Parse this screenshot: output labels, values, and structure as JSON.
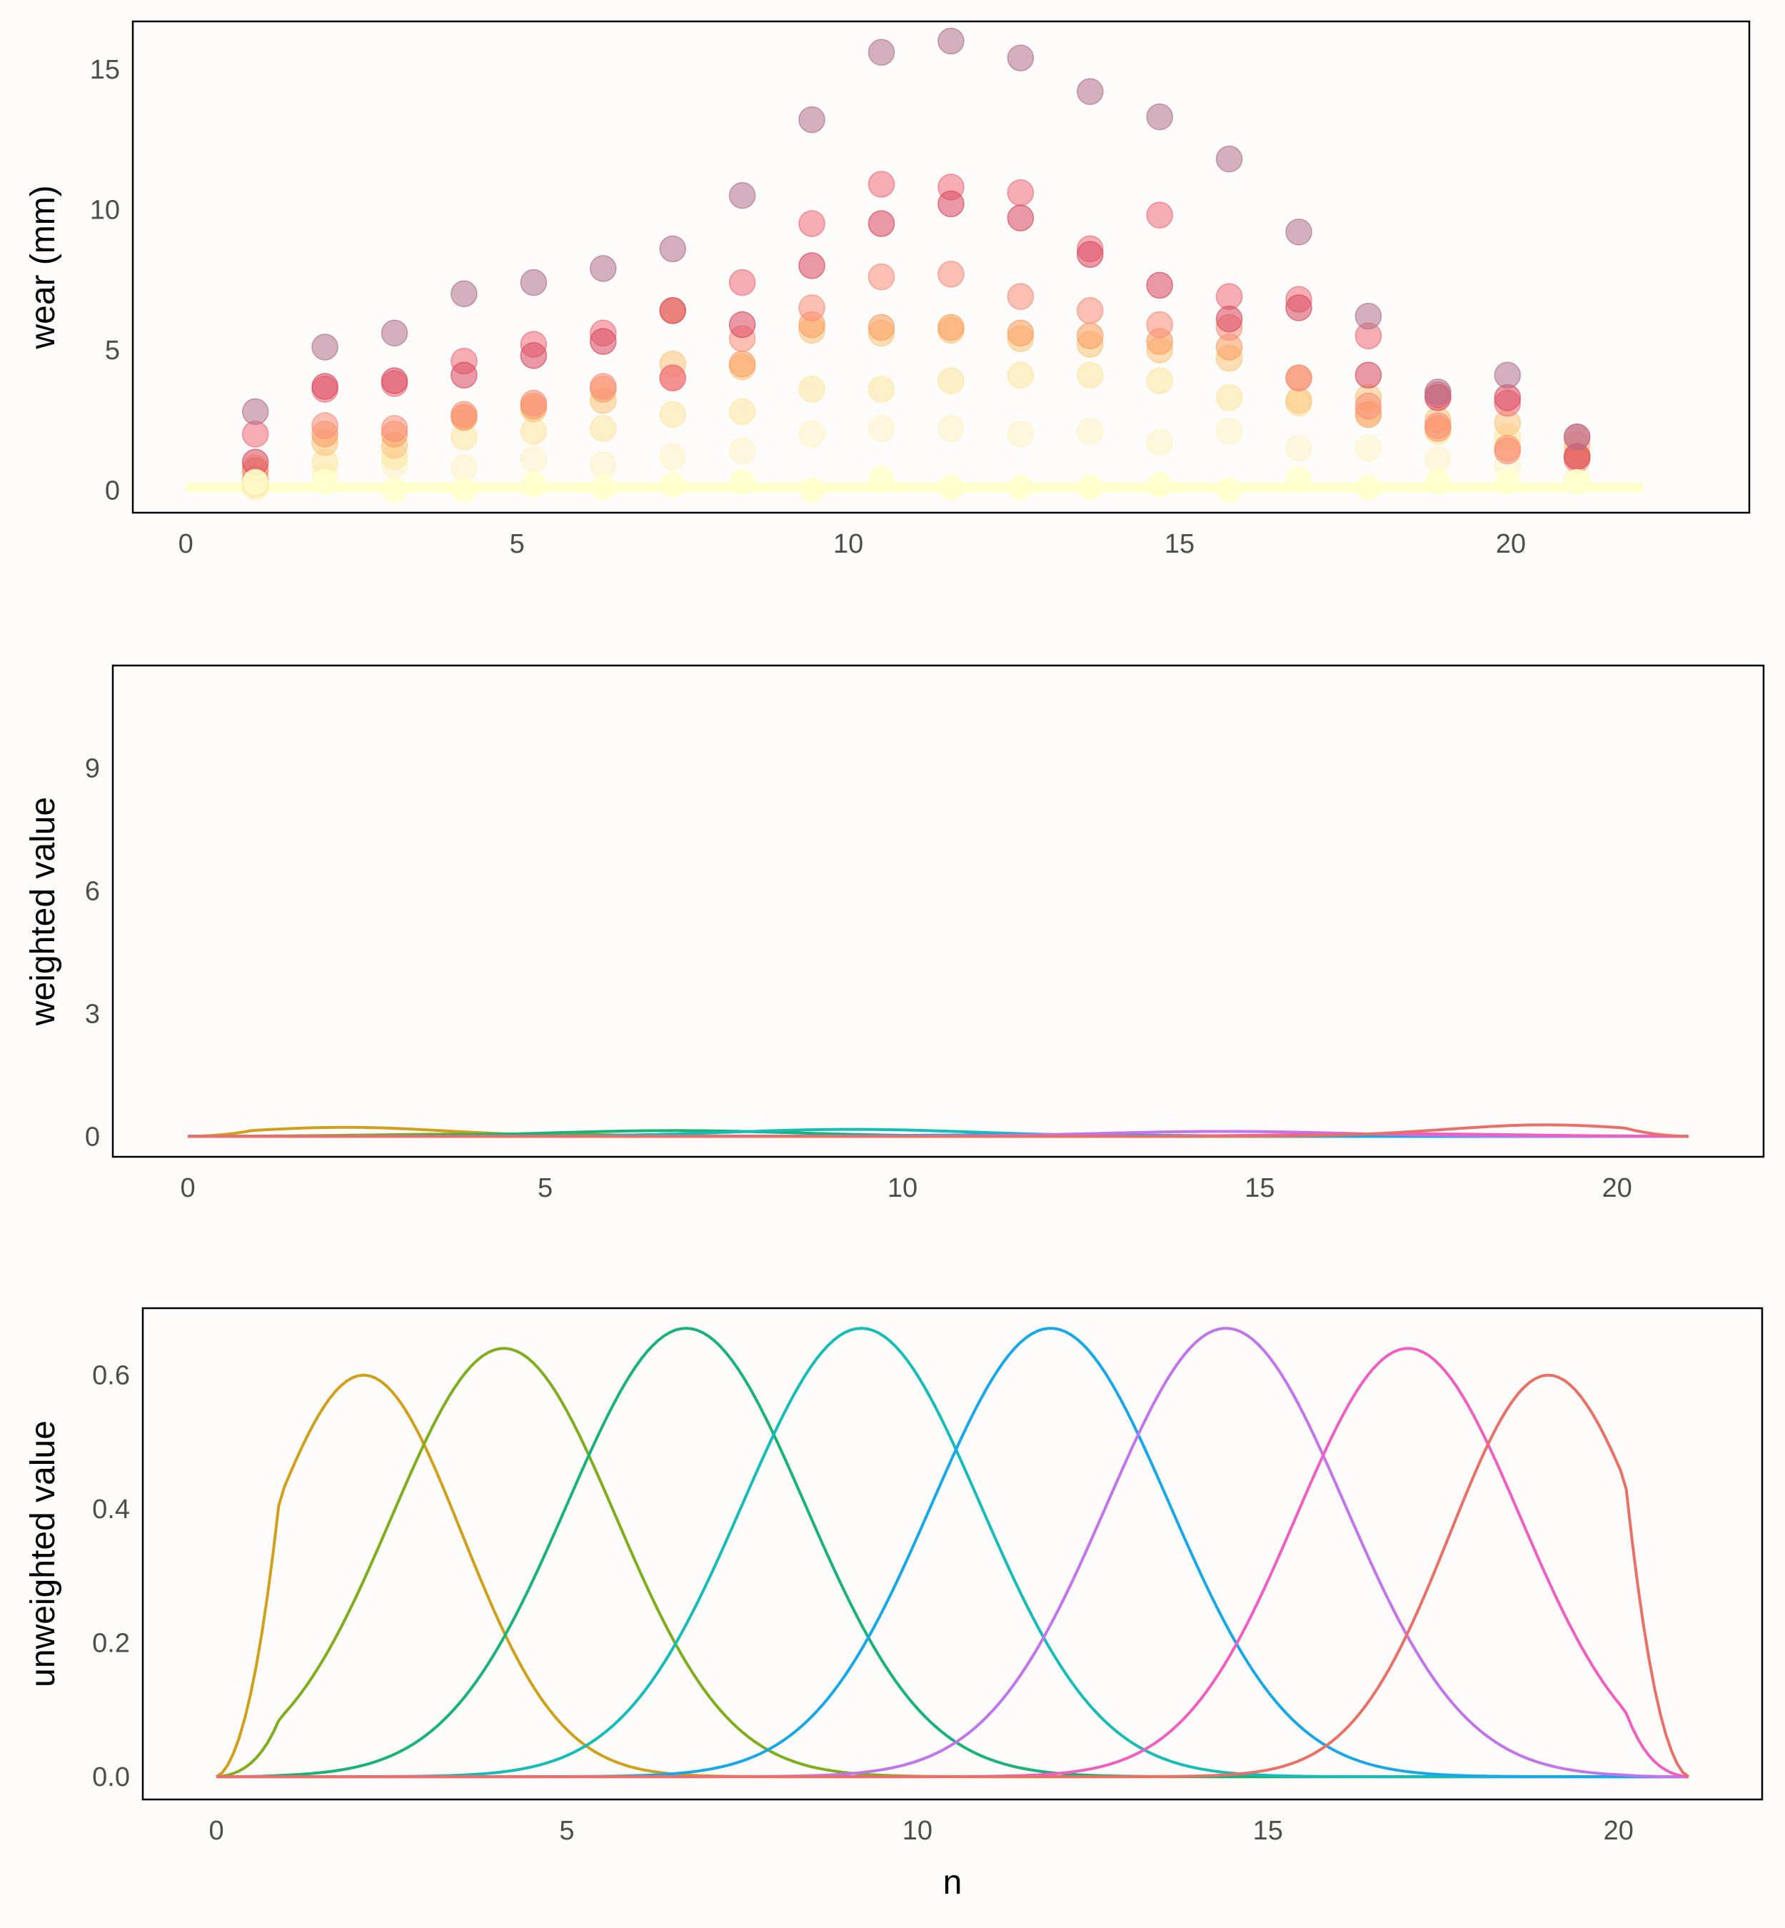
{
  "chart_data": [
    {
      "type": "scatter",
      "ylabel": "wear (mm)",
      "xlabel": "",
      "xlim": [
        -0.8,
        23.6
      ],
      "ylim": [
        -0.8,
        16.7
      ],
      "xticks": [
        0,
        5,
        10,
        15,
        20
      ],
      "yticks": [
        0,
        5,
        10,
        15
      ],
      "grid": false,
      "legend": "none",
      "x": [
        1.05,
        2.1,
        3.15,
        4.2,
        5.25,
        6.3,
        7.35,
        8.4,
        9.45,
        10.5,
        11.55,
        12.6,
        13.65,
        14.7,
        15.75,
        16.8,
        17.85,
        18.9,
        19.95,
        21.0
      ],
      "series": [
        {
          "color": "#b3708a",
          "values": [
            2.8,
            5.1,
            5.6,
            7.0,
            7.4,
            7.9,
            8.6,
            10.5,
            13.2,
            15.6,
            16.0,
            15.4,
            14.2,
            13.3,
            11.8,
            9.2,
            6.2,
            3.5,
            4.1,
            1.9
          ]
        },
        {
          "color": "#d9475e",
          "values": [
            1.0,
            3.7,
            3.9,
            4.1,
            4.8,
            5.3,
            6.4,
            5.9,
            8.0,
            9.5,
            10.2,
            9.7,
            8.4,
            7.3,
            6.1,
            6.5,
            4.1,
            3.3,
            3.3,
            1.2
          ]
        },
        {
          "color": "#f06c78",
          "values": [
            2.0,
            3.6,
            3.8,
            4.6,
            5.2,
            5.6,
            4.0,
            7.4,
            9.5,
            10.9,
            10.8,
            10.6,
            8.6,
            9.8,
            6.9,
            6.8,
            5.5,
            3.4,
            3.1,
            1.9
          ]
        },
        {
          "color": "#f98c7a",
          "values": [
            0.7,
            2.3,
            2.2,
            2.7,
            3.1,
            3.7,
            4.0,
            5.4,
            6.5,
            7.6,
            7.7,
            6.9,
            6.4,
            5.9,
            5.8,
            4.0,
            3.0,
            2.3,
            1.4,
            1.1
          ]
        },
        {
          "color": "#fb9b5b",
          "values": [
            0.4,
            2.0,
            2.0,
            2.6,
            3.0,
            3.6,
            6.4,
            4.5,
            5.9,
            5.8,
            5.8,
            5.6,
            5.5,
            5.3,
            5.1,
            4.0,
            2.7,
            2.2,
            1.5,
            1.2
          ]
        },
        {
          "color": "#fdc37a",
          "values": [
            0.8,
            1.7,
            1.6,
            2.6,
            2.9,
            3.2,
            4.5,
            4.4,
            5.7,
            5.6,
            5.7,
            5.4,
            5.2,
            5.0,
            4.7,
            3.2,
            3.3,
            2.5,
            2.4,
            1.6
          ]
        },
        {
          "color": "#fde59e",
          "values": [
            0.2,
            1.0,
            1.2,
            1.9,
            2.1,
            2.2,
            2.7,
            2.8,
            3.6,
            3.6,
            3.9,
            4.1,
            4.1,
            3.9,
            3.3,
            3.1,
            2.8,
            2.1,
            1.9,
            1.3
          ]
        },
        {
          "color": "#fef2c4",
          "values": [
            0.1,
            0.5,
            0.9,
            0.8,
            1.1,
            0.9,
            1.2,
            1.4,
            2.0,
            2.2,
            2.2,
            2.0,
            2.1,
            1.7,
            2.1,
            1.5,
            1.5,
            1.1,
            0.9,
            0.4
          ]
        }
      ],
      "trend": {
        "color": "#ffffcc",
        "x": [
          0,
          22
        ],
        "values": [
          0.1,
          0.1
        ]
      },
      "trend_points": [
        0.3,
        0.3,
        0.0,
        0.0,
        0.2,
        0.1,
        0.2,
        0.3,
        0.0,
        0.4,
        0.1,
        0.1,
        0.1,
        0.2,
        0.0,
        0.4,
        0.1,
        0.3,
        0.3,
        0.3
      ]
    },
    {
      "type": "line",
      "ylabel": "weighted value",
      "xlabel": "",
      "xlim": [
        -1.05,
        22.05
      ],
      "ylim": [
        -0.5,
        11.5
      ],
      "xticks": [
        0,
        5,
        10,
        15,
        20
      ],
      "yticks": [
        0,
        3,
        6,
        9
      ],
      "grid": false,
      "legend": "none",
      "series": [
        {
          "color": "#d1a01a",
          "peak": 2.2,
          "width": 1.4,
          "amplitude": 0.22
        },
        {
          "color": "#7fae1c",
          "peak": 4.3,
          "width": 1.6,
          "amplitude": 0.06
        },
        {
          "color": "#18b377",
          "peak": 6.8,
          "width": 1.7,
          "amplitude": 0.14
        },
        {
          "color": "#14bdb8",
          "peak": 9.3,
          "width": 1.7,
          "amplitude": 0.17
        },
        {
          "color": "#16a8ea",
          "peak": 11.9,
          "width": 1.7,
          "amplitude": 0.04
        },
        {
          "color": "#c274ec",
          "peak": 14.5,
          "width": 1.7,
          "amplitude": 0.12
        },
        {
          "color": "#f15ec1",
          "peak": 17.0,
          "width": 1.6,
          "amplitude": 0.06
        },
        {
          "color": "#ea6f66",
          "peak": 19.0,
          "width": 1.4,
          "amplitude": 0.28
        }
      ]
    },
    {
      "type": "line",
      "ylabel": "unweighted value",
      "xlabel": "n",
      "xlim": [
        -1.05,
        22.05
      ],
      "ylim": [
        -0.034,
        0.7
      ],
      "xticks": [
        0,
        5,
        10,
        15,
        20
      ],
      "yticks": [
        0.0,
        0.2,
        0.4,
        0.6
      ],
      "ytick_labels": [
        "0.0",
        "0.2",
        "0.4",
        "0.6"
      ],
      "grid": false,
      "legend": "none",
      "series": [
        {
          "color": "#d1a01a",
          "peak": 2.1,
          "width": 1.4,
          "amplitude": 0.6
        },
        {
          "color": "#7fae1c",
          "peak": 4.1,
          "width": 1.6,
          "amplitude": 0.64
        },
        {
          "color": "#18b377",
          "peak": 6.7,
          "width": 1.7,
          "amplitude": 0.67
        },
        {
          "color": "#14bdb8",
          "peak": 9.2,
          "width": 1.7,
          "amplitude": 0.67
        },
        {
          "color": "#16a8ea",
          "peak": 11.9,
          "width": 1.7,
          "amplitude": 0.67
        },
        {
          "color": "#c274ec",
          "peak": 14.4,
          "width": 1.7,
          "amplitude": 0.67
        },
        {
          "color": "#f15ec1",
          "peak": 17.0,
          "width": 1.6,
          "amplitude": 0.64
        },
        {
          "color": "#ea6f66",
          "peak": 19.0,
          "width": 1.4,
          "amplitude": 0.6
        }
      ]
    }
  ]
}
